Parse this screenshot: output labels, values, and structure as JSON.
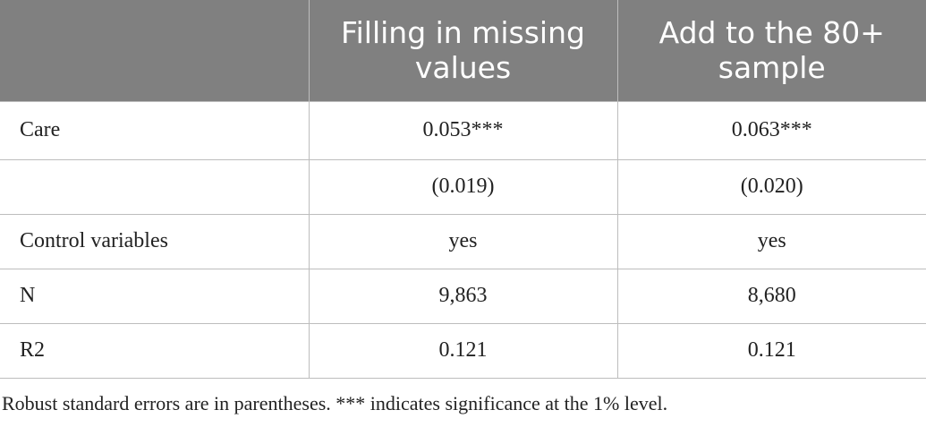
{
  "table": {
    "header": [
      "Filling in missing values",
      "Add to the 80+ sample"
    ],
    "rows": [
      [
        "Care",
        "0.053***",
        "0.063***"
      ],
      [
        null,
        "(0.019)",
        "(0.020)"
      ],
      [
        "Control variables",
        "yes",
        "yes"
      ],
      [
        "N",
        "9,863",
        "8,680"
      ],
      [
        "R2",
        "0.121",
        "0.121"
      ]
    ]
  },
  "footnote": "Robust standard errors are in parentheses. *** indicates significance at the 1% level."
}
